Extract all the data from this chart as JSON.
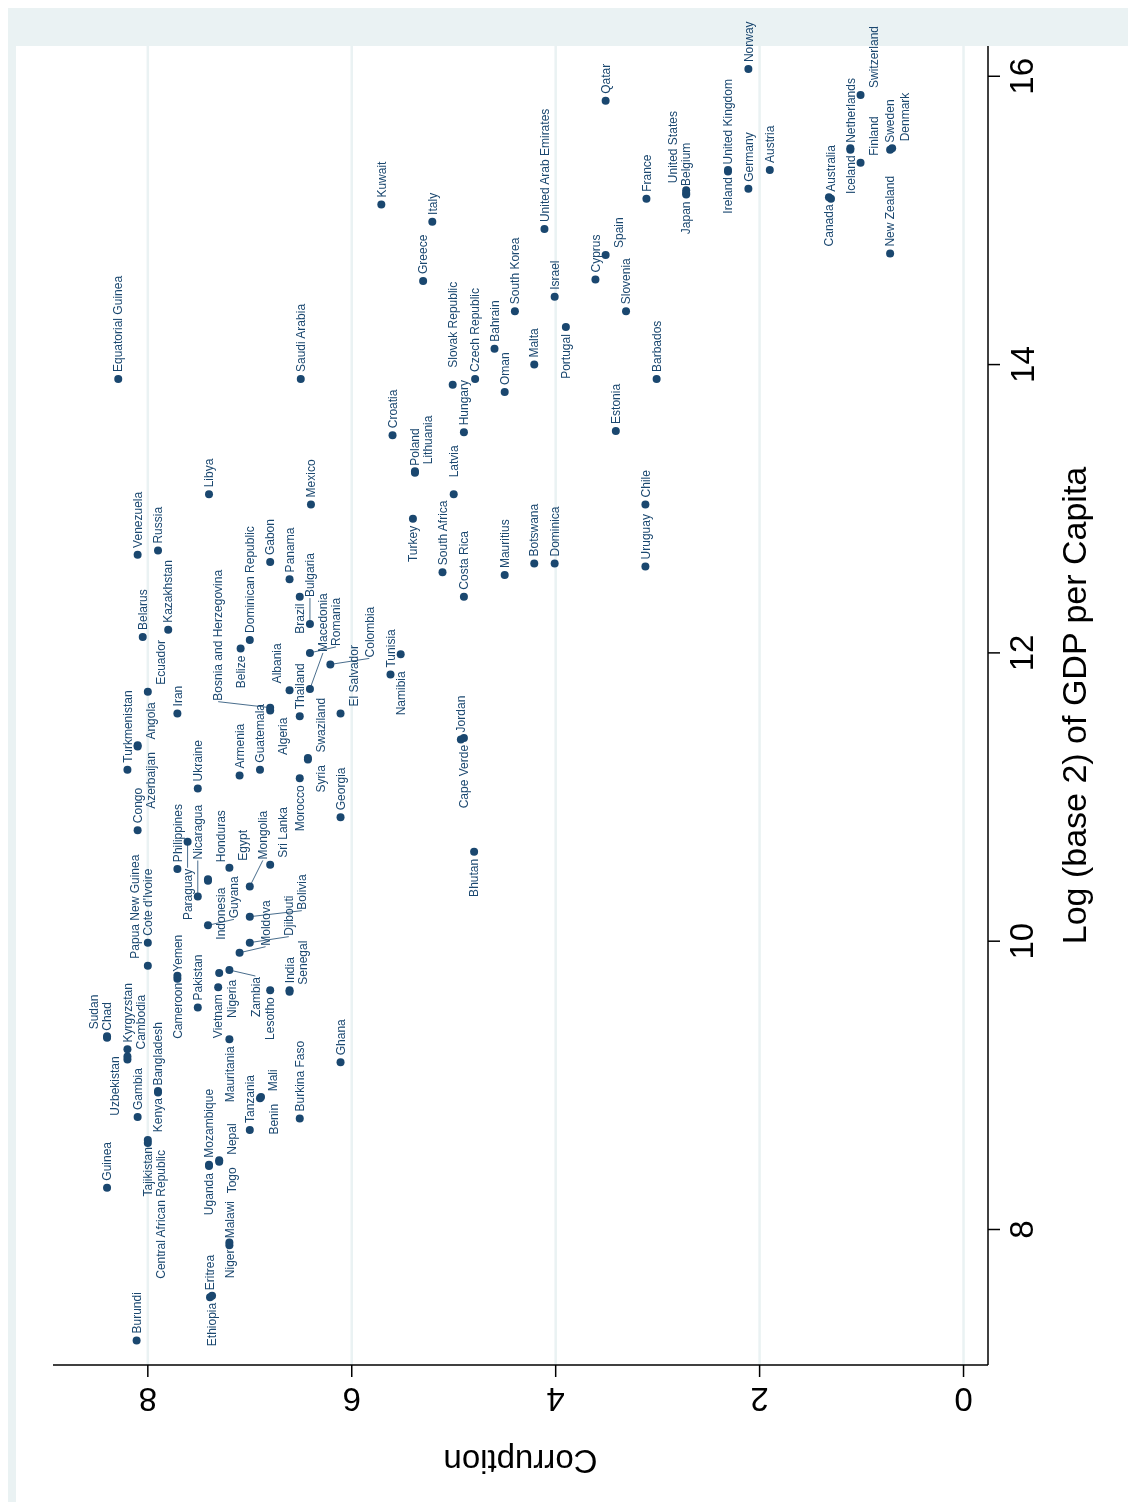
{
  "chart_data": {
    "type": "scatter",
    "xlabel": "Corruption",
    "ylabel": "Log (base 2) of GDP per Capita",
    "xlim": [
      8.93,
      -0.24
    ],
    "ylim": [
      7.06,
      16.21
    ],
    "xticks": [
      8,
      6,
      4,
      2,
      0
    ],
    "yticks": [
      8,
      10,
      12,
      14,
      16
    ],
    "grid": "x",
    "marker": "circle",
    "series": [
      {
        "color": "#1a476f",
        "x": [
          8.11,
          8.4,
          7.39,
          7.37,
          7.2,
          7.2,
          7.4,
          7.4,
          7.3,
          7.3,
          7.0,
          6.9,
          6.89,
          6.51,
          6.11,
          8.1,
          8.0,
          8.0,
          7.9,
          7.9,
          8.2,
          8.2,
          8.2,
          8.4,
          8.4,
          8.0,
          8.0,
          8.1,
          8.2,
          8.1,
          8.1,
          8.0,
          8.05,
          8.1,
          7.9,
          7.8,
          7.71,
          7.4,
          8.29,
          6.5,
          6.4,
          7.71,
          7.71,
          7.71,
          7.61,
          7.51,
          7.51,
          7.51,
          7.41,
          7.41,
          7.41,
          7.31,
          7.3,
          7.2,
          7.2,
          7.1,
          7.2,
          7.0,
          7.0,
          7.0,
          6.8,
          6.8,
          6.61,
          6.61,
          7.1,
          6.9,
          6.51,
          6.43,
          6.43,
          6.11,
          6.51,
          6.61,
          6.8,
          6.8,
          7.09,
          7.0,
          6.8,
          6.61,
          6.51,
          6.41,
          6.41,
          6.41,
          6.11,
          6.21,
          5.62,
          5.52,
          4.93,
          4.9,
          4.8,
          5.4,
          5.38,
          5.38,
          5.6,
          5.11,
          5.0,
          4.9,
          4.9,
          5.01,
          4.79,
          5.3,
          5.21,
          5.71,
          4.5,
          4.6,
          4.4,
          4.5,
          4.21,
          4.21,
          4.11,
          4.01,
          4.01,
          3.9,
          3.61,
          3.51,
          3.31,
          3.41,
          3.12,
          3.12,
          3.01,
          3.11,
          3.51,
          2.72,
          2.72,
          2.72,
          2.31,
          2.31,
          2.11,
          2.11,
          1.9,
          1.3,
          1.32,
          1.11,
          1.11,
          1.01,
          1.01,
          0.72,
          0.72,
          0.7
        ],
        "values": [
          7.23,
          8.29,
          7.53,
          7.54,
          7.89,
          7.91,
          8.45,
          8.44,
          8.47,
          8.48,
          8.69,
          8.91,
          8.92,
          8.77,
          9.16,
          8.78,
          8.6,
          8.62,
          8.95,
          8.96,
          9.18,
          9.2,
          9.25,
          9.33,
          9.34,
          9.83,
          9.99,
          10.77,
          11.19,
          11.35,
          11.36,
          11.73,
          12.11,
          12.68,
          12.71,
          12.16,
          11.58,
          13.1,
          13.9,
          13.9,
          13.03,
          9.74,
          9.76,
          10.5,
          10.69,
          9.54,
          10.31,
          11.06,
          10.42,
          10.43,
          10.11,
          9.68,
          9.78,
          9.32,
          9.8,
          9.92,
          10.51,
          9.99,
          10.17,
          10.38,
          10.53,
          9.66,
          9.65,
          9.66,
          11.15,
          11.19,
          11.13,
          11.26,
          11.27,
          10.86,
          11.56,
          11.74,
          11.6,
          11.62,
          12.03,
          12.09,
          12.63,
          12.51,
          12.39,
          11.75,
          12.0,
          12.2,
          11.58,
          11.92,
          11.85,
          11.99,
          11.4,
          11.41,
          10.62,
          12.93,
          13.25,
          13.26,
          13.51,
          12.56,
          13.1,
          12.39,
          13.53,
          13.86,
          13.9,
          14.58,
          14.99,
          15.11,
          13.81,
          14.11,
          14.37,
          12.54,
          12.62,
          14.0,
          14.94,
          12.62,
          14.47,
          14.26,
          14.59,
          14.76,
          14.37,
          13.54,
          12.6,
          13.03,
          13.9,
          15.15,
          15.83,
          15.18,
          15.19,
          15.21,
          15.34,
          15.35,
          15.22,
          16.05,
          15.35,
          15.15,
          15.16,
          15.49,
          15.5,
          15.4,
          15.87,
          14.77,
          15.49,
          15.5
        ]
      }
    ],
    "annotations": [
      {
        "text": "Burundi",
        "x": 8.11,
        "y": 7.23
      },
      {
        "text": "Guinea",
        "x": 8.4,
        "y": 8.29
      },
      {
        "text": "Eritrea",
        "x": 7.39,
        "y": 7.53
      },
      {
        "text": "Ethiopia",
        "x": 7.37,
        "y": 7.54
      },
      {
        "text": "Malawi",
        "x": 7.2,
        "y": 7.89
      },
      {
        "text": "Niger",
        "x": 7.2,
        "y": 7.91
      },
      {
        "text": "Mozambique",
        "x": 7.4,
        "y": 8.45
      },
      {
        "text": "Uganda",
        "x": 7.4,
        "y": 8.44
      },
      {
        "text": "Nepal",
        "x": 7.3,
        "y": 8.47
      },
      {
        "text": "Togo",
        "x": 7.3,
        "y": 8.48
      },
      {
        "text": "Tanzania",
        "x": 7.0,
        "y": 8.69
      },
      {
        "text": "Mali",
        "x": 6.9,
        "y": 8.91
      },
      {
        "text": "Benin",
        "x": 6.89,
        "y": 8.92
      },
      {
        "text": "Burkina Faso",
        "x": 6.51,
        "y": 8.77
      },
      {
        "text": "Ghana",
        "x": 6.11,
        "y": 9.16
      },
      {
        "text": "Gambia",
        "x": 8.1,
        "y": 8.78
      },
      {
        "text": "Central African Republic",
        "x": 8.0,
        "y": 8.6
      },
      {
        "text": "Tajikistan",
        "x": 8.0,
        "y": 8.62
      },
      {
        "text": "Bangladesh",
        "x": 7.9,
        "y": 8.95
      },
      {
        "text": "Kenya",
        "x": 7.9,
        "y": 8.96
      },
      {
        "text": "Kyrgyzstan",
        "x": 8.2,
        "y": 9.18
      },
      {
        "text": "Cambodia",
        "x": 8.2,
        "y": 9.2
      },
      {
        "text": "Uzbekistan",
        "x": 8.2,
        "y": 9.25
      },
      {
        "text": "Chad",
        "x": 8.4,
        "y": 9.33
      },
      {
        "text": "Sudan",
        "x": 8.4,
        "y": 9.34
      },
      {
        "text": "Papua New Guinea",
        "x": 8.0,
        "y": 9.83
      },
      {
        "text": "Cote d'Ivoire",
        "x": 8.0,
        "y": 9.99
      },
      {
        "text": "Congo",
        "x": 8.1,
        "y": 10.77
      },
      {
        "text": "Turkmenistan",
        "x": 8.2,
        "y": 11.19
      },
      {
        "text": "Angola",
        "x": 8.1,
        "y": 11.35
      },
      {
        "text": "Azerbaijan",
        "x": 8.1,
        "y": 11.36
      },
      {
        "text": "Ecuador",
        "x": 8.0,
        "y": 11.73
      },
      {
        "text": "Belarus",
        "x": 8.05,
        "y": 12.11
      },
      {
        "text": "Venezuela",
        "x": 8.1,
        "y": 12.68
      },
      {
        "text": "Russia",
        "x": 7.9,
        "y": 12.71
      },
      {
        "text": "Kazakhstan",
        "x": 7.8,
        "y": 12.16
      },
      {
        "text": "Iran",
        "x": 7.71,
        "y": 11.58
      },
      {
        "text": "Libya",
        "x": 7.4,
        "y": 13.1
      },
      {
        "text": "Equatorial Guinea",
        "x": 8.29,
        "y": 13.9
      },
      {
        "text": "Saudi Arabia",
        "x": 6.5,
        "y": 13.9
      },
      {
        "text": "Mexico",
        "x": 6.4,
        "y": 13.03
      },
      {
        "text": "Yemen",
        "x": 7.71,
        "y": 9.74
      },
      {
        "text": "Cameroon",
        "x": 7.71,
        "y": 9.76
      },
      {
        "text": "Philippines",
        "x": 7.71,
        "y": 10.5
      },
      {
        "text": "Paraguay",
        "x": 7.61,
        "y": 10.69
      },
      {
        "text": "Pakistan",
        "x": 7.51,
        "y": 9.54
      },
      {
        "text": "Nicaragua",
        "x": 7.51,
        "y": 10.31
      },
      {
        "text": "Ukraine",
        "x": 7.51,
        "y": 11.06
      },
      {
        "text": "Indonesia",
        "x": 7.41,
        "y": 10.42
      },
      {
        "text": "Honduras",
        "x": 7.41,
        "y": 10.43
      },
      {
        "text": "Guyana",
        "x": 7.41,
        "y": 10.11
      },
      {
        "text": "Vietnam",
        "x": 7.31,
        "y": 9.68
      },
      {
        "text": "Nigeria",
        "x": 7.3,
        "y": 9.78
      },
      {
        "text": "Mauritania",
        "x": 7.2,
        "y": 9.32
      },
      {
        "text": "Zambia",
        "x": 7.2,
        "y": 9.8
      },
      {
        "text": "Moldova",
        "x": 7.1,
        "y": 9.92
      },
      {
        "text": "Egypt",
        "x": 7.2,
        "y": 10.51
      },
      {
        "text": "Djibouti",
        "x": 7.0,
        "y": 9.99
      },
      {
        "text": "Bolivia",
        "x": 7.0,
        "y": 10.17
      },
      {
        "text": "Mongolia",
        "x": 7.0,
        "y": 10.38
      },
      {
        "text": "Sri Lanka",
        "x": 6.8,
        "y": 10.53
      },
      {
        "text": "Lesotho",
        "x": 6.8,
        "y": 9.66
      },
      {
        "text": "Senegal",
        "x": 6.61,
        "y": 9.65
      },
      {
        "text": "India",
        "x": 6.61,
        "y": 9.66
      },
      {
        "text": "Armenia",
        "x": 7.1,
        "y": 11.15
      },
      {
        "text": "Guatemala",
        "x": 6.9,
        "y": 11.19
      },
      {
        "text": "Morocco",
        "x": 6.51,
        "y": 11.13
      },
      {
        "text": "Swaziland",
        "x": 6.43,
        "y": 11.26
      },
      {
        "text": "Syria",
        "x": 6.43,
        "y": 11.27
      },
      {
        "text": "Georgia",
        "x": 6.11,
        "y": 10.86
      },
      {
        "text": "Thailand",
        "x": 6.51,
        "y": 11.56
      },
      {
        "text": "Albania",
        "x": 6.61,
        "y": 11.74
      },
      {
        "text": "Algeria",
        "x": 6.8,
        "y": 11.6
      },
      {
        "text": "Bosnia and Herzegovina",
        "x": 6.8,
        "y": 11.62
      },
      {
        "text": "Belize",
        "x": 7.09,
        "y": 12.03
      },
      {
        "text": "Dominican Republic",
        "x": 7.0,
        "y": 12.09
      },
      {
        "text": "Gabon",
        "x": 6.8,
        "y": 12.63
      },
      {
        "text": "Panama",
        "x": 6.61,
        "y": 12.51
      },
      {
        "text": "Brazil",
        "x": 6.51,
        "y": 12.39
      },
      {
        "text": "Macedonia",
        "x": 6.41,
        "y": 11.75
      },
      {
        "text": "Romania",
        "x": 6.41,
        "y": 12.0
      },
      {
        "text": "Bulgaria",
        "x": 6.41,
        "y": 12.2
      },
      {
        "text": "El Salvador",
        "x": 6.11,
        "y": 11.58
      },
      {
        "text": "Colombia",
        "x": 6.21,
        "y": 11.92
      },
      {
        "text": "Tunisia",
        "x": 5.62,
        "y": 11.85
      },
      {
        "text": "Namibia",
        "x": 5.52,
        "y": 11.99
      },
      {
        "text": "Jordan",
        "x": 4.93,
        "y": 11.4
      },
      {
        "text": "Cape Verde",
        "x": 4.9,
        "y": 11.41
      },
      {
        "text": "Bhutan",
        "x": 4.8,
        "y": 10.62
      },
      {
        "text": "Turkey",
        "x": 5.4,
        "y": 12.93
      },
      {
        "text": "Poland",
        "x": 5.38,
        "y": 13.25
      },
      {
        "text": "Lithuania",
        "x": 5.38,
        "y": 13.26
      },
      {
        "text": "Croatia",
        "x": 5.6,
        "y": 13.51
      },
      {
        "text": "South Africa",
        "x": 5.11,
        "y": 12.56
      },
      {
        "text": "Latvia",
        "x": 5.0,
        "y": 13.1
      },
      {
        "text": "Costa Rica",
        "x": 4.9,
        "y": 12.39
      },
      {
        "text": "Hungary",
        "x": 4.9,
        "y": 13.53
      },
      {
        "text": "Slovak Republic",
        "x": 5.01,
        "y": 13.86
      },
      {
        "text": "Czech Republic",
        "x": 4.79,
        "y": 13.9
      },
      {
        "text": "Greece",
        "x": 5.3,
        "y": 14.58
      },
      {
        "text": "Italy",
        "x": 5.21,
        "y": 14.99
      },
      {
        "text": "Kuwait",
        "x": 5.71,
        "y": 15.11
      },
      {
        "text": "Oman",
        "x": 4.5,
        "y": 13.81
      },
      {
        "text": "Bahrain",
        "x": 4.6,
        "y": 14.11
      },
      {
        "text": "South Korea",
        "x": 4.4,
        "y": 14.37
      },
      {
        "text": "Mauritius",
        "x": 4.5,
        "y": 12.54
      },
      {
        "text": "Botswana",
        "x": 4.21,
        "y": 12.62
      },
      {
        "text": "Malta",
        "x": 4.21,
        "y": 14.0
      },
      {
        "text": "United Arab Emirates",
        "x": 4.11,
        "y": 14.94
      },
      {
        "text": "Dominica",
        "x": 4.01,
        "y": 12.62
      },
      {
        "text": "Israel",
        "x": 4.01,
        "y": 14.47
      },
      {
        "text": "Portugal",
        "x": 3.9,
        "y": 14.26
      },
      {
        "text": "Cyprus",
        "x": 3.61,
        "y": 14.59
      },
      {
        "text": "Spain",
        "x": 3.51,
        "y": 14.76
      },
      {
        "text": "Slovenia",
        "x": 3.31,
        "y": 14.37
      },
      {
        "text": "Estonia",
        "x": 3.41,
        "y": 13.54
      },
      {
        "text": "Uruguay",
        "x": 3.12,
        "y": 12.6
      },
      {
        "text": "Chile",
        "x": 3.12,
        "y": 13.03
      },
      {
        "text": "Barbados",
        "x": 3.01,
        "y": 13.9
      },
      {
        "text": "France",
        "x": 3.11,
        "y": 15.15
      },
      {
        "text": "Qatar",
        "x": 3.51,
        "y": 15.83
      },
      {
        "text": "Japan",
        "x": 2.72,
        "y": 15.18
      },
      {
        "text": "Belgium",
        "x": 2.72,
        "y": 15.19
      },
      {
        "text": "United States",
        "x": 2.72,
        "y": 15.21
      },
      {
        "text": "United Kingdom",
        "x": 2.31,
        "y": 15.34
      },
      {
        "text": "Ireland",
        "x": 2.31,
        "y": 15.35
      },
      {
        "text": "Germany",
        "x": 2.11,
        "y": 15.22
      },
      {
        "text": "Norway",
        "x": 2.11,
        "y": 16.05
      },
      {
        "text": "Austria",
        "x": 1.9,
        "y": 15.35
      },
      {
        "text": "Australia",
        "x": 1.3,
        "y": 15.15
      },
      {
        "text": "Canada",
        "x": 1.32,
        "y": 15.16
      },
      {
        "text": "Netherlands",
        "x": 1.11,
        "y": 15.49
      },
      {
        "text": "Iceland",
        "x": 1.11,
        "y": 15.5
      },
      {
        "text": "Finland",
        "x": 1.01,
        "y": 15.4
      },
      {
        "text": "Switzerland",
        "x": 1.01,
        "y": 15.87
      },
      {
        "text": "New Zealand",
        "x": 0.72,
        "y": 14.77
      },
      {
        "text": "Sweden",
        "x": 0.72,
        "y": 15.49
      },
      {
        "text": "Denmark",
        "x": 0.7,
        "y": 15.5
      }
    ]
  }
}
